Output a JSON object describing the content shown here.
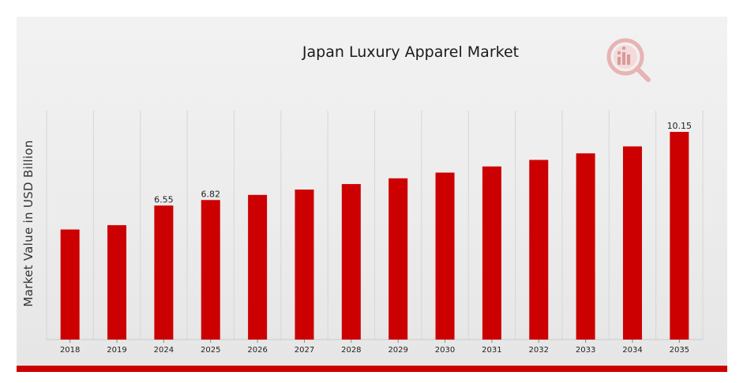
{
  "chart_data": {
    "type": "bar",
    "title": "Japan Luxury Apparel Market",
    "xlabel": "",
    "ylabel": "Market Value in USD Billion",
    "categories": [
      "2018",
      "2019",
      "2024",
      "2025",
      "2026",
      "2027",
      "2028",
      "2029",
      "2030",
      "2031",
      "2032",
      "2033",
      "2034",
      "2035"
    ],
    "values": [
      5.38,
      5.59,
      6.55,
      6.82,
      7.07,
      7.33,
      7.6,
      7.88,
      8.16,
      8.46,
      8.78,
      9.1,
      9.44,
      10.15
    ],
    "data_labels": [
      "",
      "",
      "6.55",
      "6.82",
      "",
      "",
      "",
      "",
      "",
      "",
      "",
      "",
      "",
      "10.15"
    ],
    "ylim": [
      0,
      10.15
    ],
    "grid": {
      "vertical": true,
      "horizontal": false
    },
    "legend": "none",
    "bar_color": "#cc0000"
  },
  "colors": {
    "accent": "#cc0000",
    "background": "#efefef",
    "grid": "#d6d6d6"
  },
  "branding": {
    "logo": "mrfr-logo-icon"
  }
}
